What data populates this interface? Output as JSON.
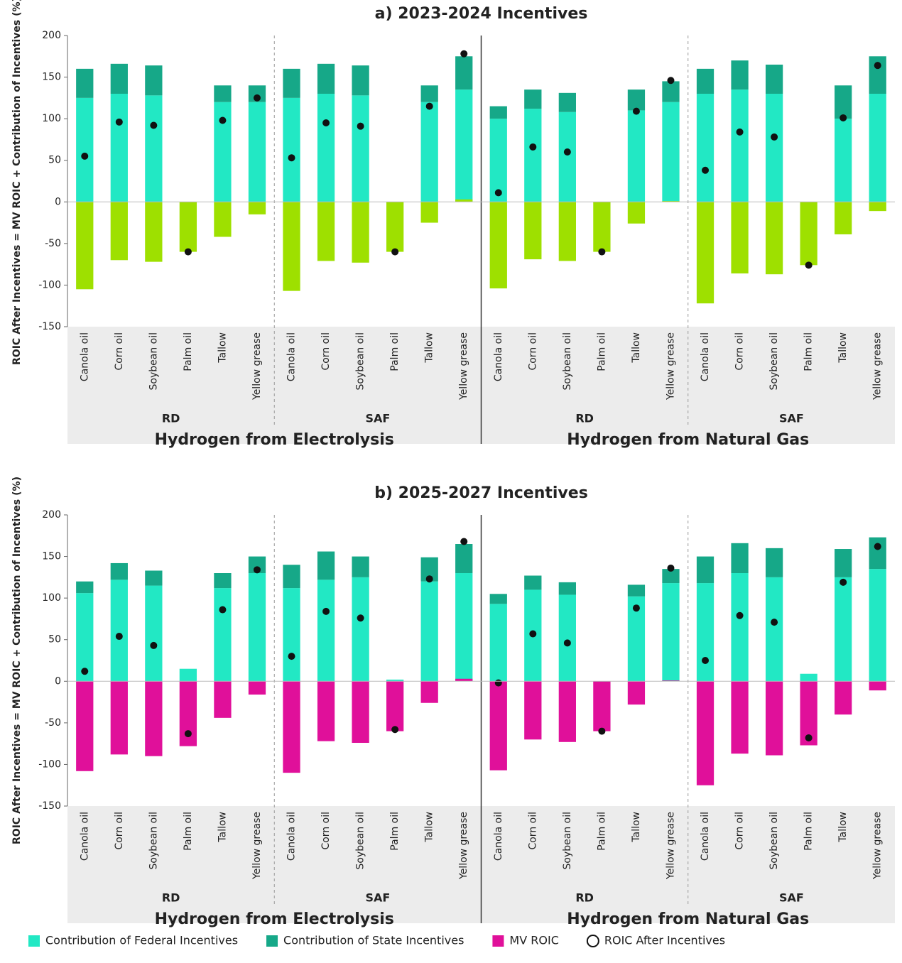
{
  "chart_data": [
    {
      "type": "bar",
      "title": "a) 2023-2024 Incentives",
      "y_label": "ROIC After Incentives = MV ROIC + Contribution of Incentives (%)",
      "categories": [
        "Canola oil",
        "Corn oil",
        "Soybean oil",
        "Palm oil",
        "Tallow",
        "Yellow grease",
        "Canola oil",
        "Corn oil",
        "Soybean oil",
        "Palm oil",
        "Tallow",
        "Yellow grease",
        "Canola oil",
        "Corn oil",
        "Soybean oil",
        "Palm oil",
        "Tallow",
        "Yellow grease",
        "Canola oil",
        "Corn oil",
        "Soybean oil",
        "Palm oil",
        "Tallow",
        "Yellow grease"
      ],
      "groups": [
        {
          "name": "Hydrogen from Electrolysis",
          "subgroups": [
            "RD",
            "SAF"
          ]
        },
        {
          "name": "Hydrogen from Natural Gas",
          "subgroups": [
            "RD",
            "SAF"
          ]
        }
      ],
      "series": [
        {
          "color": "#22e8c4",
          "values": [
            125,
            130,
            128,
            0,
            120,
            120,
            125,
            130,
            128,
            0,
            120,
            135,
            100,
            112,
            108,
            0,
            110,
            120,
            130,
            135,
            130,
            0,
            100,
            130
          ]
        },
        {
          "color": "#16a888",
          "values": [
            35,
            36,
            36,
            0,
            20,
            20,
            35,
            36,
            36,
            0,
            20,
            40,
            15,
            23,
            23,
            0,
            25,
            25,
            30,
            35,
            35,
            0,
            40,
            45
          ]
        },
        {
          "color": "#9ee000",
          "values": [
            -105,
            -70,
            -72,
            -60,
            -42,
            -15,
            -107,
            -71,
            -73,
            -60,
            -25,
            3,
            -104,
            -69,
            -71,
            -60,
            -26,
            1,
            -122,
            -86,
            -87,
            -76,
            -39,
            -11
          ]
        },
        {
          "color": "#111111",
          "values": [
            55,
            96,
            92,
            -60,
            98,
            125,
            53,
            95,
            91,
            -60,
            115,
            178,
            11,
            66,
            60,
            -60,
            109,
            146,
            38,
            84,
            78,
            -76,
            101,
            164
          ]
        }
      ],
      "ylim": [
        -150,
        200
      ],
      "yticks": [
        -150,
        -100,
        -50,
        0,
        50,
        100,
        150,
        200
      ]
    },
    {
      "type": "bar",
      "title": "b) 2025-2027 Incentives",
      "y_label": "ROIC After Incentives = MV ROIC + Contribution of Incentives (%)",
      "categories": [
        "Canola oil",
        "Corn oil",
        "Soybean oil",
        "Palm oil",
        "Tallow",
        "Yellow grease",
        "Canola oil",
        "Corn oil",
        "Soybean oil",
        "Palm oil",
        "Tallow",
        "Yellow grease",
        "Canola oil",
        "Corn oil",
        "Soybean oil",
        "Palm oil",
        "Tallow",
        "Yellow grease",
        "Canola oil",
        "Corn oil",
        "Soybean oil",
        "Palm oil",
        "Tallow",
        "Yellow grease"
      ],
      "groups": [
        {
          "name": "Hydrogen from Electrolysis",
          "subgroups": [
            "RD",
            "SAF"
          ]
        },
        {
          "name": "Hydrogen from Natural Gas",
          "subgroups": [
            "RD",
            "SAF"
          ]
        }
      ],
      "series": [
        {
          "name": "Contribution of Federal Incentives",
          "color": "#22e8c4",
          "values": [
            106,
            122,
            115,
            15,
            112,
            130,
            112,
            122,
            125,
            2,
            120,
            130,
            93,
            110,
            104,
            0,
            102,
            118,
            118,
            130,
            125,
            9,
            125,
            135
          ]
        },
        {
          "name": "Contribution of State Incentives",
          "color": "#16a888",
          "values": [
            14,
            20,
            18,
            0,
            18,
            20,
            28,
            34,
            25,
            0,
            29,
            35,
            12,
            17,
            15,
            0,
            14,
            17,
            32,
            36,
            35,
            0,
            34,
            38
          ]
        },
        {
          "name": "MV ROIC",
          "color": "#e0109a",
          "values": [
            -108,
            -88,
            -90,
            -78,
            -44,
            -16,
            -110,
            -72,
            -74,
            -60,
            -26,
            3,
            -107,
            -70,
            -73,
            -60,
            -28,
            1,
            -125,
            -87,
            -89,
            -77,
            -40,
            -11
          ]
        },
        {
          "name": "ROIC After Incentives",
          "color": "#111111",
          "values": [
            12,
            54,
            43,
            -63,
            86,
            134,
            30,
            84,
            76,
            -58,
            123,
            168,
            -2,
            57,
            46,
            -60,
            88,
            136,
            25,
            79,
            71,
            -68,
            119,
            162
          ]
        }
      ],
      "ylim": [
        -150,
        200
      ],
      "yticks": [
        -150,
        -100,
        -50,
        0,
        50,
        100,
        150,
        200
      ]
    }
  ]
}
